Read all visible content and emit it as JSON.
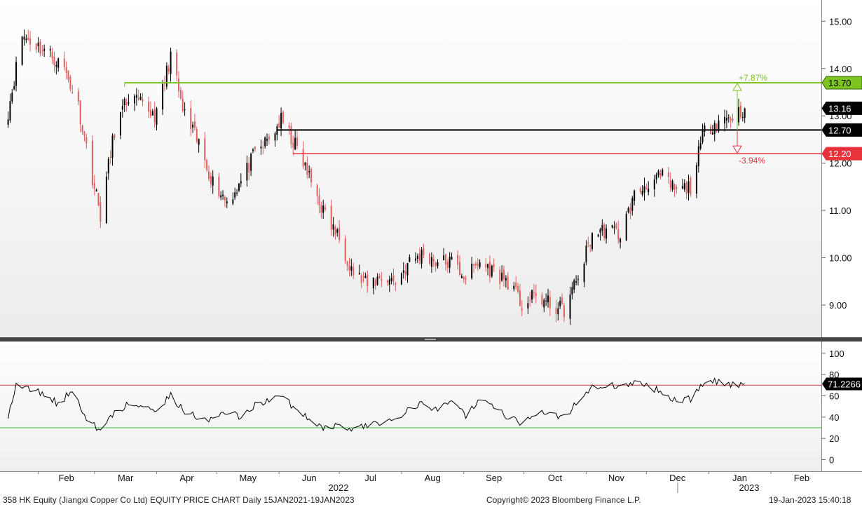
{
  "chart_data": [
    {
      "type": "candlestick",
      "name": "price-panel",
      "y_ticks": [
        "9.00",
        "10.00",
        "11.00",
        "12.00",
        "13.00",
        "14.00",
        "15.00"
      ],
      "ylim": [
        8.3,
        15.2
      ],
      "x_labels": [
        "Feb",
        "Mar",
        "Apr",
        "May",
        "Jun",
        "Jul",
        "Aug",
        "Sep",
        "Oct",
        "Nov",
        "Dec",
        "Jan",
        "Feb"
      ],
      "year_labels": [
        "2022",
        "2023"
      ],
      "trend_points": [
        [
          "2022-01-17",
          13.1
        ],
        [
          "2022-01-24",
          14.7
        ],
        [
          "2022-01-31",
          14.5
        ],
        [
          "2022-02-07",
          14.3
        ],
        [
          "2022-02-14",
          14.0
        ],
        [
          "2022-02-21",
          13.2
        ],
        [
          "2022-02-28",
          11.7
        ],
        [
          "2022-03-04",
          10.9
        ],
        [
          "2022-03-11",
          12.7
        ],
        [
          "2022-03-18",
          13.4
        ],
        [
          "2022-03-25",
          13.2
        ],
        [
          "2022-04-01",
          13.0
        ],
        [
          "2022-04-08",
          14.3
        ],
        [
          "2022-04-14",
          13.1
        ],
        [
          "2022-04-22",
          12.4
        ],
        [
          "2022-04-29",
          11.6
        ],
        [
          "2022-05-06",
          11.2
        ],
        [
          "2022-05-13",
          11.6
        ],
        [
          "2022-05-20",
          12.2
        ],
        [
          "2022-05-27",
          12.5
        ],
        [
          "2022-06-02",
          12.9
        ],
        [
          "2022-06-10",
          12.3
        ],
        [
          "2022-06-17",
          11.6
        ],
        [
          "2022-06-24",
          10.9
        ],
        [
          "2022-07-01",
          10.4
        ],
        [
          "2022-07-08",
          9.7
        ],
        [
          "2022-07-15",
          9.4
        ],
        [
          "2022-07-22",
          9.6
        ],
        [
          "2022-07-29",
          9.5
        ],
        [
          "2022-08-05",
          9.9
        ],
        [
          "2022-08-12",
          10.1
        ],
        [
          "2022-08-19",
          9.9
        ],
        [
          "2022-08-26",
          9.9
        ],
        [
          "2022-09-02",
          9.6
        ],
        [
          "2022-09-09",
          9.9
        ],
        [
          "2022-09-16",
          9.7
        ],
        [
          "2022-09-23",
          9.5
        ],
        [
          "2022-09-30",
          9.0
        ],
        [
          "2022-10-07",
          9.2
        ],
        [
          "2022-10-14",
          9.0
        ],
        [
          "2022-10-21",
          8.9
        ],
        [
          "2022-10-28",
          9.6
        ],
        [
          "2022-11-04",
          10.5
        ],
        [
          "2022-11-11",
          10.6
        ],
        [
          "2022-11-18",
          10.5
        ],
        [
          "2022-11-25",
          11.3
        ],
        [
          "2022-12-02",
          11.6
        ],
        [
          "2022-12-09",
          11.7
        ],
        [
          "2022-12-16",
          11.4
        ],
        [
          "2022-12-23",
          11.5
        ],
        [
          "2022-12-30",
          12.7
        ],
        [
          "2023-01-06",
          12.9
        ],
        [
          "2023-01-13",
          13.0
        ],
        [
          "2023-01-19",
          13.16
        ]
      ],
      "levels": [
        {
          "name": "upper",
          "value": 13.7,
          "label": "13.70",
          "color": "#7cc41f",
          "pct": "+7.87%"
        },
        {
          "name": "last",
          "value": 13.16,
          "label": "13.16",
          "color": "#000000"
        },
        {
          "name": "mid",
          "value": 12.7,
          "label": "12.70",
          "color": "#000000"
        },
        {
          "name": "lower",
          "value": 12.2,
          "label": "12.20",
          "color": "#e8323c",
          "pct": "-3.94%"
        }
      ],
      "colors": {
        "up": "#000000",
        "down": "#e06060"
      }
    },
    {
      "type": "line",
      "name": "rsi-panel",
      "y_ticks": [
        "0",
        "20",
        "40",
        "60",
        "80",
        "100"
      ],
      "ylim": [
        -5,
        105
      ],
      "last_value": "71.2266",
      "bands": [
        {
          "value": 70,
          "color": "#d63a3a"
        },
        {
          "value": 30,
          "color": "#3cc43c"
        }
      ],
      "trend_points": [
        [
          "2022-01-17",
          42
        ],
        [
          "2022-01-21",
          70
        ],
        [
          "2022-01-28",
          66
        ],
        [
          "2022-02-04",
          62
        ],
        [
          "2022-02-11",
          52
        ],
        [
          "2022-02-18",
          65
        ],
        [
          "2022-02-25",
          40
        ],
        [
          "2022-03-04",
          26
        ],
        [
          "2022-03-11",
          45
        ],
        [
          "2022-03-18",
          52
        ],
        [
          "2022-03-25",
          50
        ],
        [
          "2022-04-01",
          48
        ],
        [
          "2022-04-08",
          60
        ],
        [
          "2022-04-15",
          45
        ],
        [
          "2022-04-22",
          40
        ],
        [
          "2022-04-29",
          38
        ],
        [
          "2022-05-06",
          45
        ],
        [
          "2022-05-13",
          40
        ],
        [
          "2022-05-20",
          52
        ],
        [
          "2022-05-27",
          55
        ],
        [
          "2022-06-03",
          60
        ],
        [
          "2022-06-10",
          45
        ],
        [
          "2022-06-17",
          38
        ],
        [
          "2022-06-24",
          30
        ],
        [
          "2022-07-01",
          32
        ],
        [
          "2022-07-08",
          28
        ],
        [
          "2022-07-15",
          32
        ],
        [
          "2022-07-22",
          36
        ],
        [
          "2022-07-29",
          38
        ],
        [
          "2022-08-05",
          50
        ],
        [
          "2022-08-12",
          52
        ],
        [
          "2022-08-19",
          46
        ],
        [
          "2022-08-26",
          58
        ],
        [
          "2022-09-02",
          42
        ],
        [
          "2022-09-09",
          55
        ],
        [
          "2022-09-16",
          50
        ],
        [
          "2022-09-23",
          40
        ],
        [
          "2022-09-30",
          34
        ],
        [
          "2022-10-07",
          45
        ],
        [
          "2022-10-14",
          42
        ],
        [
          "2022-10-21",
          40
        ],
        [
          "2022-10-28",
          55
        ],
        [
          "2022-11-04",
          68
        ],
        [
          "2022-11-11",
          70
        ],
        [
          "2022-11-18",
          68
        ],
        [
          "2022-11-25",
          72
        ],
        [
          "2022-12-02",
          70
        ],
        [
          "2022-12-09",
          62
        ],
        [
          "2022-12-16",
          56
        ],
        [
          "2022-12-23",
          57
        ],
        [
          "2022-12-30",
          72
        ],
        [
          "2023-01-06",
          74
        ],
        [
          "2023-01-13",
          70
        ],
        [
          "2023-01-19",
          71.2266
        ]
      ]
    }
  ],
  "footer": {
    "security": "358 HK Equity (Jiangxi Copper Co Ltd) EQUITY PRICE CHART  Daily 15JAN2021-19JAN2023",
    "copyright": "Copyright© 2023 Bloomberg Finance L.P.",
    "timestamp": "19-Jan-2023 15:40:18"
  }
}
